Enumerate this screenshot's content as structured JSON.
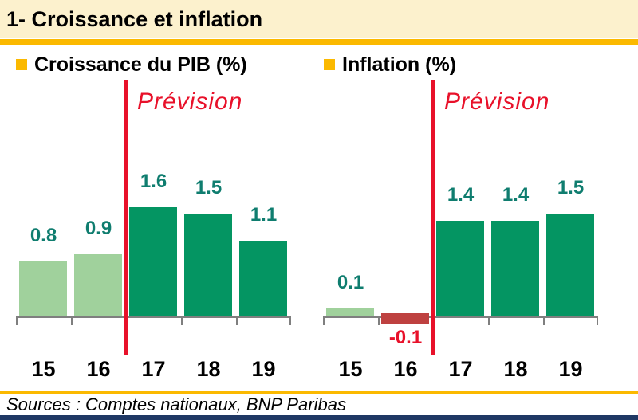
{
  "header": {
    "title": "1- Croissance et inflation"
  },
  "footer": {
    "sources": "Sources : Comptes nationaux, BNP Paribas"
  },
  "colors": {
    "banner_bg": "#FCF1CD",
    "accent_orange": "#FBB900",
    "axis_gray": "#7F7F7F",
    "bar_light_green": "#A0D19C",
    "bar_dark_green": "#049562",
    "bar_negative_red": "#BE4140",
    "value_label_teal": "#0F7D6F",
    "forecast_red": "#E8112A",
    "footer_navy": "#1F3864",
    "text_black": "#000000"
  },
  "chart_data": [
    {
      "type": "bar",
      "title": "Croissance du PIB (%)",
      "categories": [
        "15",
        "16",
        "17",
        "18",
        "19"
      ],
      "values": [
        0.8,
        0.9,
        1.6,
        1.5,
        1.1
      ],
      "value_labels": [
        "0.8",
        "0.9",
        "1.6",
        "1.5",
        "1.1"
      ],
      "bar_colors": [
        "#A0D19C",
        "#A0D19C",
        "#049562",
        "#049562",
        "#049562"
      ],
      "value_label_colors": [
        "#0F7D6F",
        "#0F7D6F",
        "#0F7D6F",
        "#0F7D6F",
        "#0F7D6F"
      ],
      "annotation": "Prévision",
      "forecast_start_index": 2,
      "ylim": [
        -0.2,
        1.9
      ],
      "gridlines": false,
      "legend_marker_color": "#FBB900",
      "legend_position": "top-left"
    },
    {
      "type": "bar",
      "title": "Inflation (%)",
      "categories": [
        "15",
        "16",
        "17",
        "18",
        "19"
      ],
      "values": [
        0.1,
        -0.1,
        1.4,
        1.4,
        1.5
      ],
      "value_labels": [
        "0.1",
        "-0.1",
        "1.4",
        "1.4",
        "1.5"
      ],
      "bar_colors": [
        "#A0D19C",
        "#BE4140",
        "#049562",
        "#049562",
        "#049562"
      ],
      "value_label_colors": [
        "#0F7D6F",
        "#E8112A",
        "#0F7D6F",
        "#0F7D6F",
        "#0F7D6F"
      ],
      "annotation": "Prévision",
      "forecast_start_index": 2,
      "ylim": [
        -0.2,
        1.9
      ],
      "gridlines": false,
      "legend_marker_color": "#FBB900",
      "legend_position": "top-left"
    }
  ]
}
